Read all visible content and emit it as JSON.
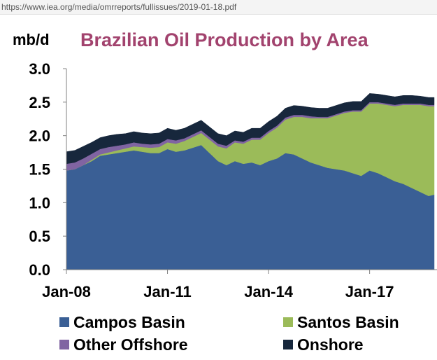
{
  "browser": {
    "url": "https://www.iea.org/media/omrreports/fullissues/2019-01-18.pdf"
  },
  "chart_data": {
    "type": "area",
    "stacked": true,
    "title": "Brazilian Oil Production by Area",
    "ylabel": "mb/d",
    "xlabel": "",
    "ylim": [
      0,
      3.0
    ],
    "yticks": [
      "0.0",
      "0.5",
      "1.0",
      "1.5",
      "2.0",
      "2.5",
      "3.0"
    ],
    "xticks": [
      "Jan-08",
      "Jan-11",
      "Jan-14",
      "Jan-17"
    ],
    "xtick_dates": [
      "2008-01",
      "2011-01",
      "2014-01",
      "2017-01"
    ],
    "x": [
      "2008-01",
      "2008-04",
      "2008-07",
      "2008-10",
      "2009-01",
      "2009-04",
      "2009-07",
      "2009-10",
      "2010-01",
      "2010-04",
      "2010-07",
      "2010-10",
      "2011-01",
      "2011-04",
      "2011-07",
      "2011-10",
      "2012-01",
      "2012-04",
      "2012-07",
      "2012-10",
      "2013-01",
      "2013-04",
      "2013-07",
      "2013-10",
      "2014-01",
      "2014-04",
      "2014-07",
      "2014-10",
      "2015-01",
      "2015-04",
      "2015-07",
      "2015-10",
      "2016-01",
      "2016-04",
      "2016-07",
      "2016-10",
      "2017-01",
      "2017-04",
      "2017-07",
      "2017-10",
      "2018-01",
      "2018-04",
      "2018-07",
      "2018-10",
      "2018-12"
    ],
    "series": [
      {
        "name": "Campos Basin",
        "color": "#3a5f95",
        "values": [
          1.48,
          1.5,
          1.56,
          1.62,
          1.7,
          1.72,
          1.74,
          1.76,
          1.78,
          1.76,
          1.74,
          1.74,
          1.8,
          1.76,
          1.78,
          1.82,
          1.86,
          1.74,
          1.62,
          1.56,
          1.62,
          1.58,
          1.6,
          1.56,
          1.62,
          1.66,
          1.74,
          1.72,
          1.66,
          1.6,
          1.56,
          1.52,
          1.5,
          1.48,
          1.44,
          1.4,
          1.48,
          1.44,
          1.38,
          1.32,
          1.28,
          1.22,
          1.16,
          1.1,
          1.12
        ]
      },
      {
        "name": "Santos Basin",
        "color": "#9bbb59",
        "values": [
          0.0,
          0.0,
          0.0,
          0.02,
          0.02,
          0.03,
          0.04,
          0.05,
          0.06,
          0.07,
          0.08,
          0.09,
          0.1,
          0.12,
          0.14,
          0.16,
          0.18,
          0.2,
          0.22,
          0.25,
          0.28,
          0.3,
          0.34,
          0.38,
          0.42,
          0.46,
          0.5,
          0.56,
          0.62,
          0.66,
          0.7,
          0.74,
          0.8,
          0.86,
          0.92,
          0.96,
          1.0,
          1.04,
          1.08,
          1.12,
          1.18,
          1.24,
          1.3,
          1.34,
          1.32
        ]
      },
      {
        "name": "Other Offshore",
        "color": "#8064a2",
        "values": [
          0.1,
          0.1,
          0.1,
          0.09,
          0.08,
          0.08,
          0.07,
          0.06,
          0.06,
          0.05,
          0.05,
          0.05,
          0.05,
          0.05,
          0.04,
          0.04,
          0.04,
          0.04,
          0.04,
          0.04,
          0.03,
          0.03,
          0.03,
          0.03,
          0.03,
          0.03,
          0.03,
          0.03,
          0.03,
          0.03,
          0.02,
          0.02,
          0.02,
          0.02,
          0.02,
          0.02,
          0.02,
          0.02,
          0.02,
          0.02,
          0.02,
          0.02,
          0.02,
          0.02,
          0.02
        ]
      },
      {
        "name": "Onshore",
        "color": "#17273c",
        "values": [
          0.18,
          0.18,
          0.18,
          0.17,
          0.17,
          0.17,
          0.17,
          0.16,
          0.16,
          0.16,
          0.16,
          0.16,
          0.16,
          0.15,
          0.15,
          0.15,
          0.15,
          0.15,
          0.15,
          0.15,
          0.14,
          0.14,
          0.14,
          0.14,
          0.14,
          0.14,
          0.14,
          0.14,
          0.13,
          0.13,
          0.13,
          0.13,
          0.13,
          0.13,
          0.13,
          0.13,
          0.13,
          0.12,
          0.12,
          0.12,
          0.12,
          0.12,
          0.11,
          0.11,
          0.11
        ]
      }
    ],
    "legend": {
      "position": "bottom",
      "entries": [
        "Campos Basin",
        "Santos Basin",
        "Other Offshore",
        "Onshore"
      ]
    },
    "grid": false
  }
}
